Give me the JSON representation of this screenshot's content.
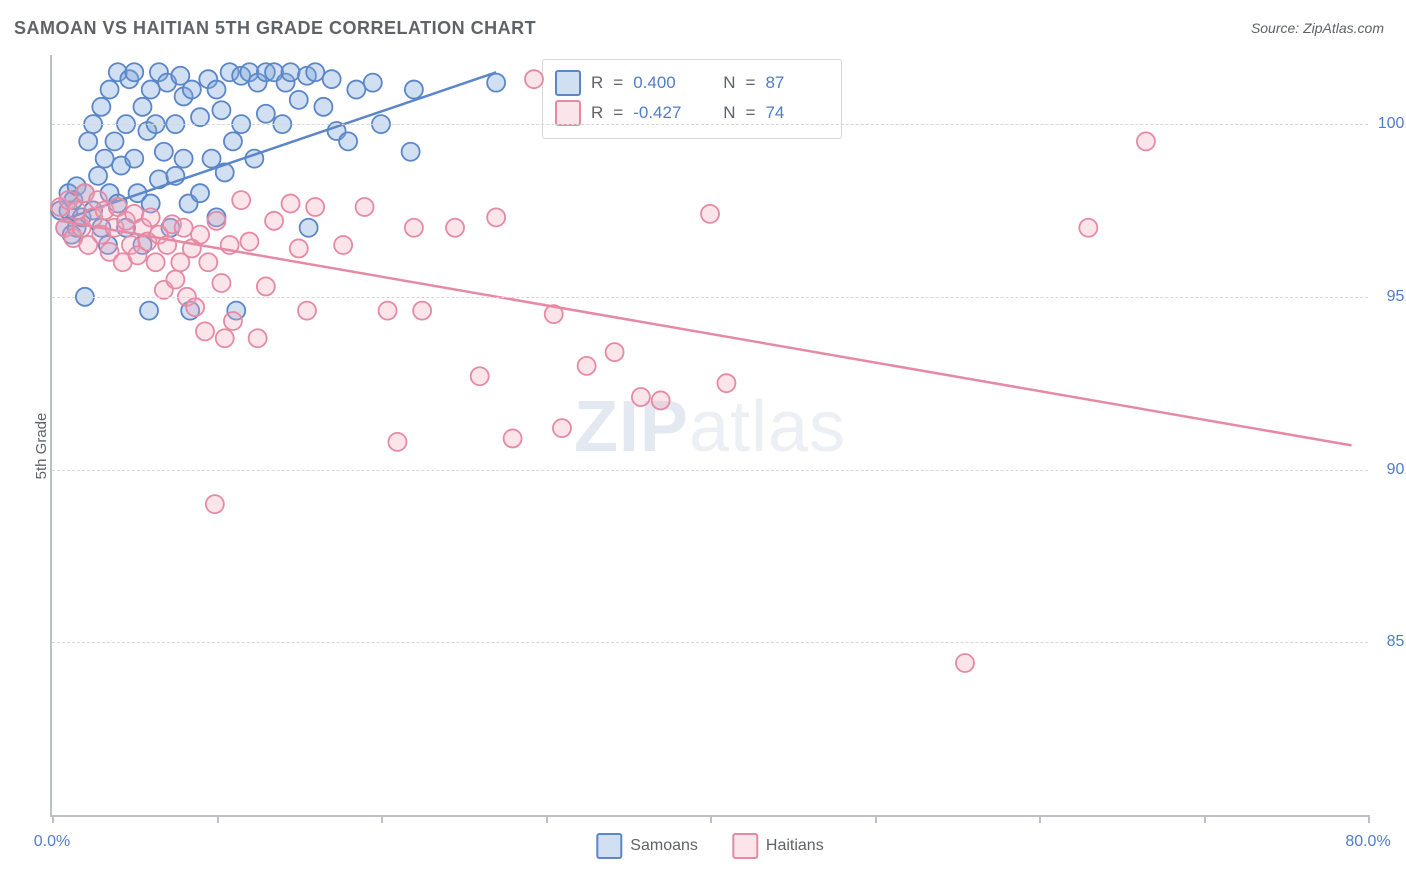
{
  "title": "SAMOAN VS HAITIAN 5TH GRADE CORRELATION CHART",
  "source": "Source: ZipAtlas.com",
  "y_axis_label": "5th Grade",
  "watermark": {
    "bold": "ZIP",
    "rest": "atlas"
  },
  "chart": {
    "type": "scatter",
    "x_domain": [
      0,
      80
    ],
    "y_domain": [
      80,
      102
    ],
    "y_ticks": [
      85,
      90,
      95,
      100
    ],
    "y_tick_labels": [
      "85.0%",
      "90.0%",
      "95.0%",
      "100.0%"
    ],
    "x_ticks": [
      0,
      10,
      20,
      30,
      40,
      50,
      60,
      70,
      80
    ],
    "x_labels_shown": {
      "0": "0.0%",
      "80": "80.0%"
    },
    "grid_color": "#d5d7da",
    "axis_color": "#bdc1c6",
    "tick_label_color": "#4f7dc9",
    "marker_radius": 9,
    "marker_stroke_width": 1.8,
    "trend_stroke_width": 2.5,
    "series": [
      {
        "name": "Samoans",
        "stroke": "#5b86c8",
        "fill": "rgba(123,162,217,0.35)",
        "r_value": "0.400",
        "n_value": "87",
        "trend": {
          "x1": 0.5,
          "y1": 97.2,
          "x2": 27,
          "y2": 101.5
        },
        "points": [
          [
            0.5,
            97.5
          ],
          [
            0.8,
            97.0
          ],
          [
            1.0,
            97.5
          ],
          [
            1.0,
            98.0
          ],
          [
            1.2,
            96.8
          ],
          [
            1.3,
            97.8
          ],
          [
            1.5,
            97.0
          ],
          [
            1.5,
            98.2
          ],
          [
            1.8,
            97.3
          ],
          [
            2.0,
            98.0
          ],
          [
            2.0,
            95.0
          ],
          [
            2.2,
            99.5
          ],
          [
            2.5,
            97.5
          ],
          [
            2.5,
            100.0
          ],
          [
            2.8,
            98.5
          ],
          [
            3.0,
            97.0
          ],
          [
            3.0,
            100.5
          ],
          [
            3.2,
            99.0
          ],
          [
            3.4,
            96.5
          ],
          [
            3.5,
            101.0
          ],
          [
            3.5,
            98.0
          ],
          [
            3.8,
            99.5
          ],
          [
            4.0,
            101.5
          ],
          [
            4.0,
            97.7
          ],
          [
            4.2,
            98.8
          ],
          [
            4.5,
            100.0
          ],
          [
            4.5,
            97.0
          ],
          [
            4.7,
            101.3
          ],
          [
            5.0,
            99.0
          ],
          [
            5.0,
            101.5
          ],
          [
            5.2,
            98.0
          ],
          [
            5.5,
            100.5
          ],
          [
            5.5,
            96.5
          ],
          [
            5.8,
            99.8
          ],
          [
            5.9,
            94.6
          ],
          [
            6.0,
            101.0
          ],
          [
            6.0,
            97.7
          ],
          [
            6.3,
            100.0
          ],
          [
            6.5,
            101.5
          ],
          [
            6.5,
            98.4
          ],
          [
            6.8,
            99.2
          ],
          [
            7.0,
            101.2
          ],
          [
            7.2,
            97.0
          ],
          [
            7.5,
            100.0
          ],
          [
            7.5,
            98.5
          ],
          [
            7.8,
            101.4
          ],
          [
            8.0,
            99.0
          ],
          [
            8.0,
            100.8
          ],
          [
            8.3,
            97.7
          ],
          [
            8.4,
            94.6
          ],
          [
            8.5,
            101.0
          ],
          [
            9.0,
            98.0
          ],
          [
            9.0,
            100.2
          ],
          [
            9.5,
            101.3
          ],
          [
            9.7,
            99.0
          ],
          [
            10.0,
            97.3
          ],
          [
            10.0,
            101.0
          ],
          [
            10.3,
            100.4
          ],
          [
            10.5,
            98.6
          ],
          [
            10.8,
            101.5
          ],
          [
            11.0,
            99.5
          ],
          [
            11.2,
            94.6
          ],
          [
            11.5,
            101.4
          ],
          [
            11.5,
            100.0
          ],
          [
            12.0,
            101.5
          ],
          [
            12.3,
            99.0
          ],
          [
            12.5,
            101.2
          ],
          [
            13.0,
            100.3
          ],
          [
            13.0,
            101.5
          ],
          [
            13.5,
            101.5
          ],
          [
            14.0,
            100.0
          ],
          [
            14.2,
            101.2
          ],
          [
            14.5,
            101.5
          ],
          [
            15.0,
            100.7
          ],
          [
            15.5,
            101.4
          ],
          [
            15.6,
            97.0
          ],
          [
            16.0,
            101.5
          ],
          [
            16.5,
            100.5
          ],
          [
            17.0,
            101.3
          ],
          [
            17.3,
            99.8
          ],
          [
            18.0,
            99.5
          ],
          [
            18.5,
            101.0
          ],
          [
            19.5,
            101.2
          ],
          [
            20.0,
            100.0
          ],
          [
            21.8,
            99.2
          ],
          [
            22.0,
            101.0
          ],
          [
            27.0,
            101.2
          ]
        ]
      },
      {
        "name": "Haitians",
        "stroke": "#e68aa4",
        "fill": "rgba(242,170,190,0.32)",
        "r_value": "-0.427",
        "n_value": "74",
        "trend": {
          "x1": 0.5,
          "y1": 97.2,
          "x2": 79,
          "y2": 90.7
        },
        "points": [
          [
            0.5,
            97.6
          ],
          [
            0.8,
            97.0
          ],
          [
            1.0,
            97.8
          ],
          [
            1.3,
            96.7
          ],
          [
            1.5,
            97.5
          ],
          [
            1.8,
            97.0
          ],
          [
            2.0,
            98.0
          ],
          [
            2.2,
            96.5
          ],
          [
            2.5,
            97.3
          ],
          [
            2.8,
            97.8
          ],
          [
            3.0,
            96.8
          ],
          [
            3.2,
            97.5
          ],
          [
            3.5,
            96.3
          ],
          [
            3.8,
            97.0
          ],
          [
            4.0,
            97.6
          ],
          [
            4.3,
            96.0
          ],
          [
            4.5,
            97.2
          ],
          [
            4.8,
            96.5
          ],
          [
            5.0,
            97.4
          ],
          [
            5.2,
            96.2
          ],
          [
            5.5,
            97.0
          ],
          [
            5.8,
            96.6
          ],
          [
            6.0,
            97.3
          ],
          [
            6.3,
            96.0
          ],
          [
            6.5,
            96.8
          ],
          [
            6.8,
            95.2
          ],
          [
            7.0,
            96.5
          ],
          [
            7.3,
            97.1
          ],
          [
            7.5,
            95.5
          ],
          [
            7.8,
            96.0
          ],
          [
            8.0,
            97.0
          ],
          [
            8.2,
            95.0
          ],
          [
            8.5,
            96.4
          ],
          [
            8.7,
            94.7
          ],
          [
            9.0,
            96.8
          ],
          [
            9.3,
            94.0
          ],
          [
            9.5,
            96.0
          ],
          [
            9.9,
            89.0
          ],
          [
            10.0,
            97.2
          ],
          [
            10.3,
            95.4
          ],
          [
            10.5,
            93.8
          ],
          [
            10.8,
            96.5
          ],
          [
            11.0,
            94.3
          ],
          [
            11.5,
            97.8
          ],
          [
            12.0,
            96.6
          ],
          [
            12.5,
            93.8
          ],
          [
            13.0,
            95.3
          ],
          [
            13.5,
            97.2
          ],
          [
            14.5,
            97.7
          ],
          [
            15.0,
            96.4
          ],
          [
            15.5,
            94.6
          ],
          [
            16.0,
            97.6
          ],
          [
            17.7,
            96.5
          ],
          [
            19.0,
            97.6
          ],
          [
            20.4,
            94.6
          ],
          [
            21.0,
            90.8
          ],
          [
            22.0,
            97.0
          ],
          [
            22.5,
            94.6
          ],
          [
            24.5,
            97.0
          ],
          [
            26.0,
            92.7
          ],
          [
            27.0,
            97.3
          ],
          [
            28.0,
            90.9
          ],
          [
            29.3,
            101.3
          ],
          [
            30.5,
            94.5
          ],
          [
            31.0,
            91.2
          ],
          [
            32.5,
            93.0
          ],
          [
            34.2,
            93.4
          ],
          [
            35.8,
            92.1
          ],
          [
            37.0,
            92.0
          ],
          [
            40.0,
            97.4
          ],
          [
            41.0,
            92.5
          ],
          [
            55.5,
            84.4
          ],
          [
            63.0,
            97.0
          ],
          [
            66.5,
            99.5
          ]
        ]
      }
    ]
  },
  "stats_box": {
    "r_label": "R",
    "n_label": "N",
    "eq": "="
  },
  "legend_bottom": [
    {
      "label": "Samoans",
      "series": 0
    },
    {
      "label": "Haitians",
      "series": 1
    }
  ]
}
